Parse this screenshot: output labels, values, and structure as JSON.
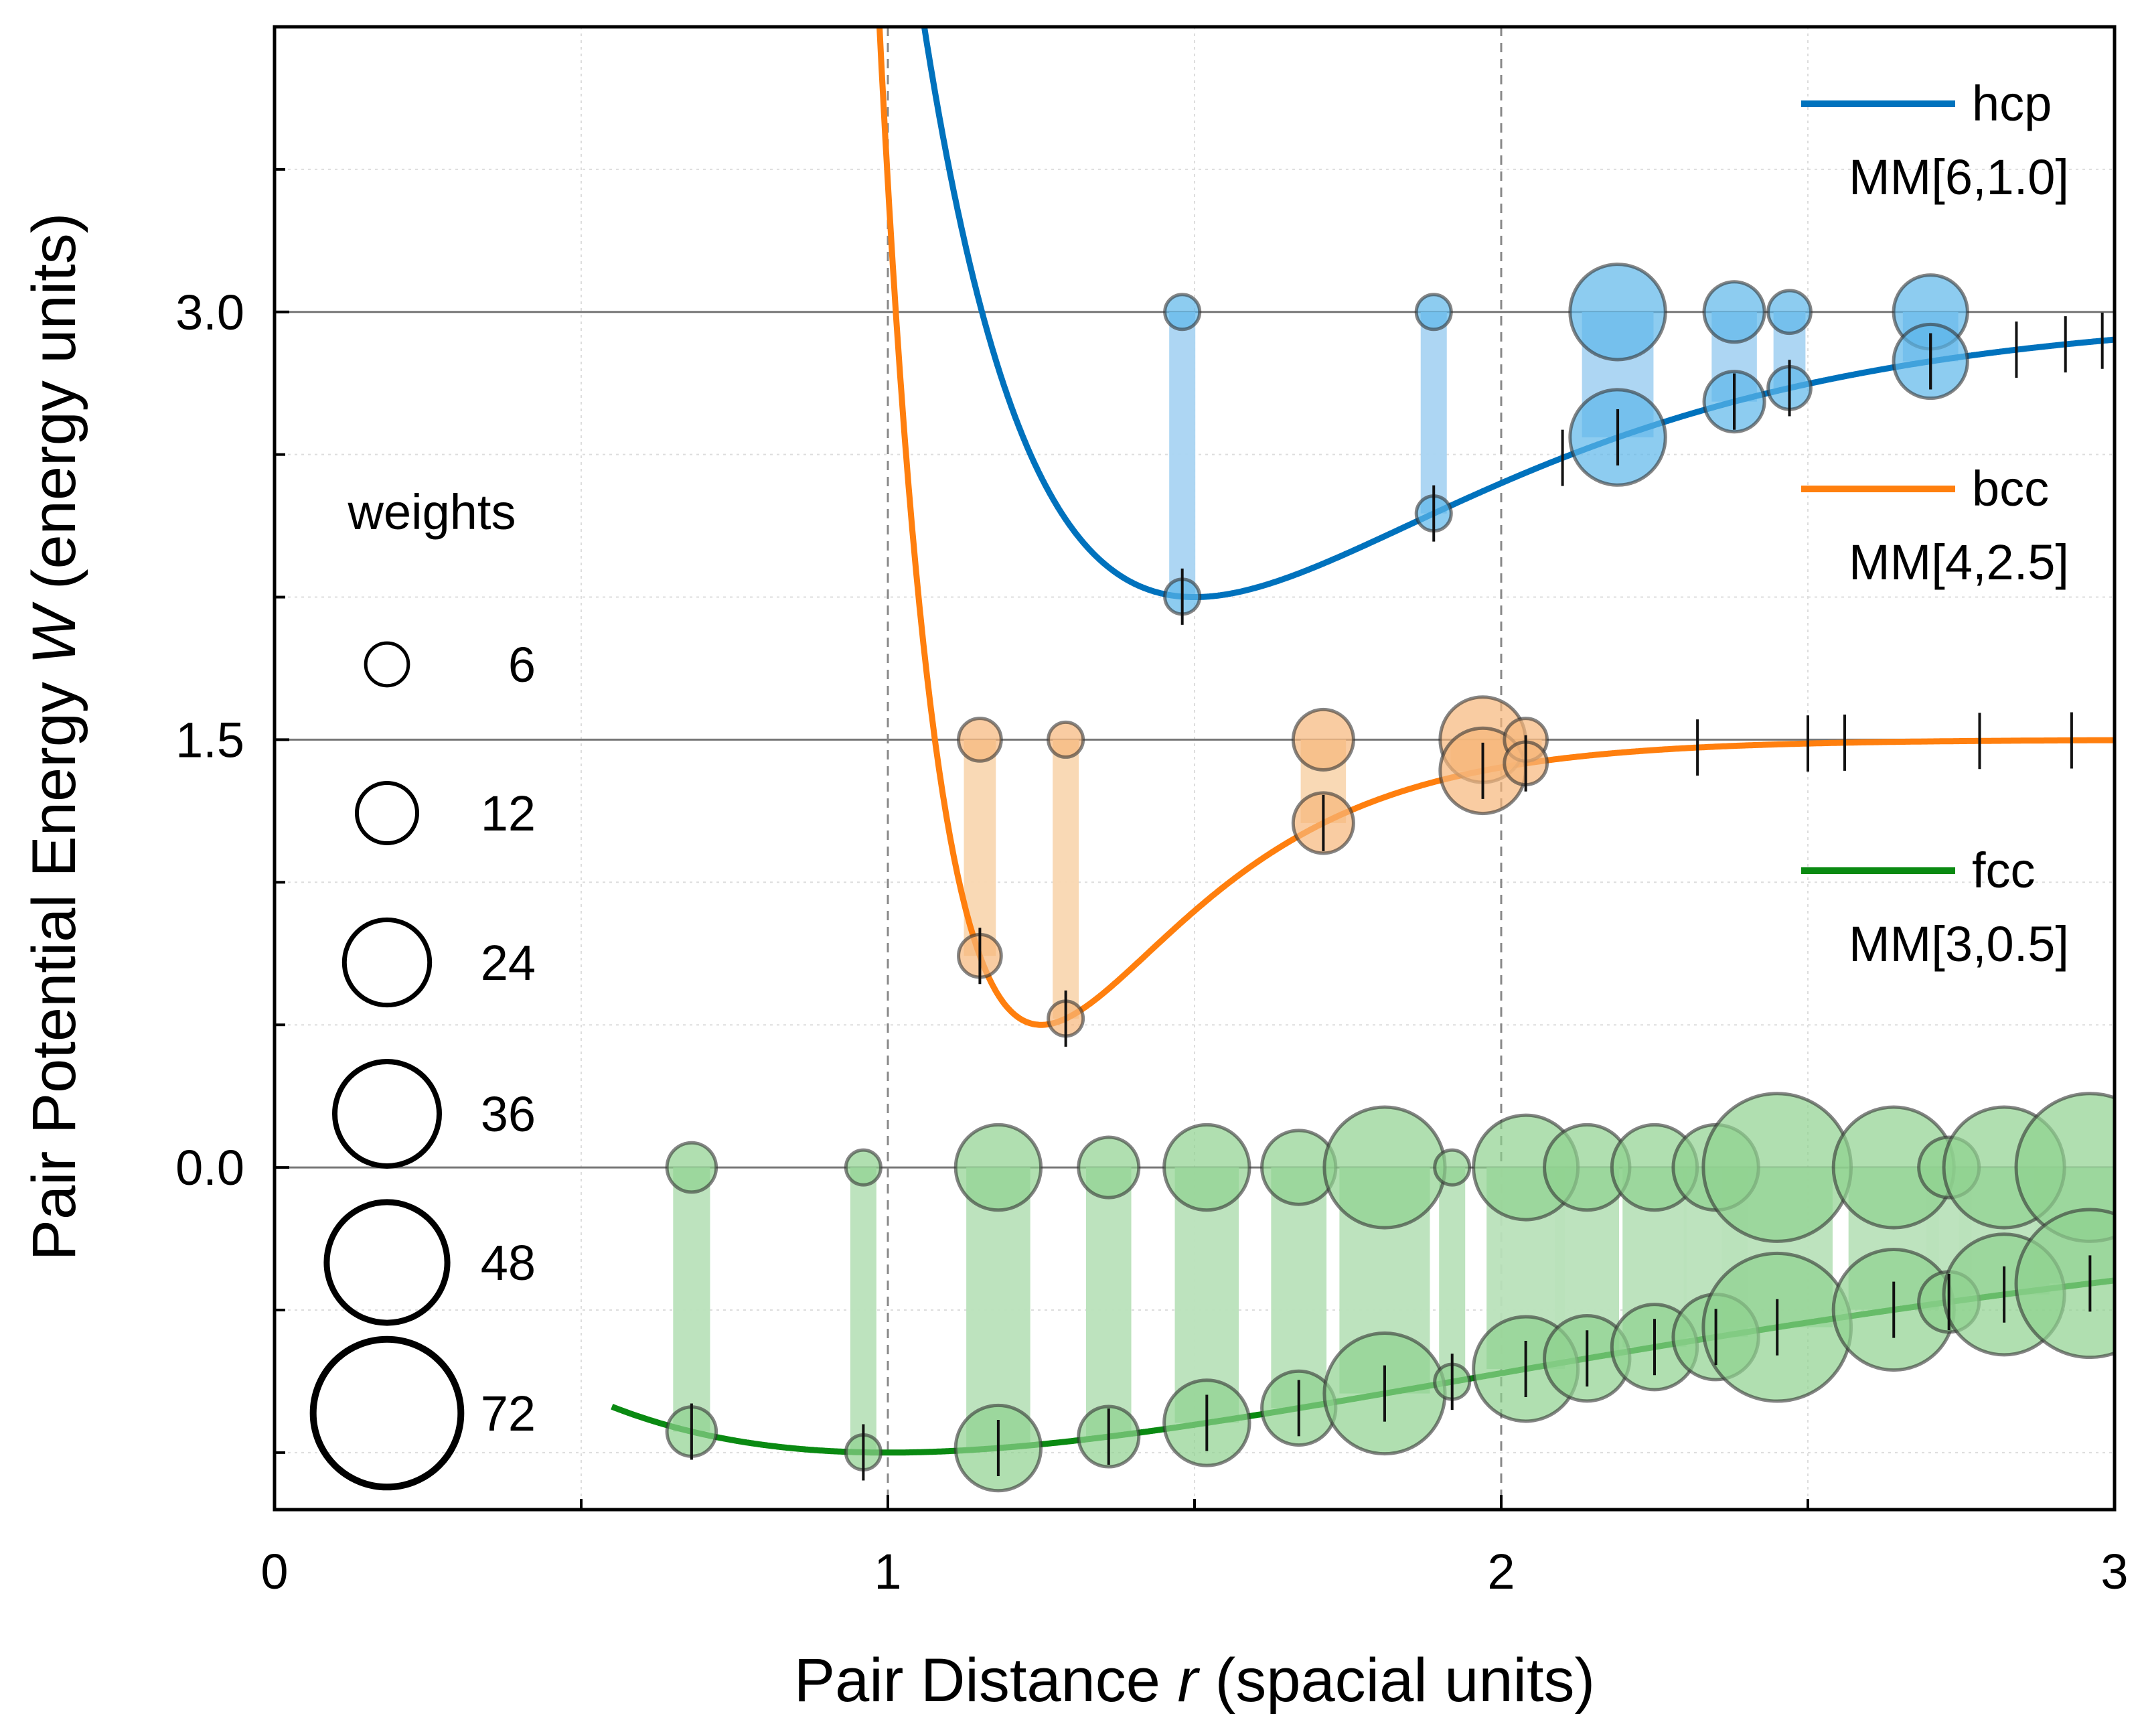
{
  "chart_data": {
    "type": "line",
    "xlabel_prefix": "Pair Distance ",
    "xlabel_var": "r",
    "xlabel_suffix": " (spacial units)",
    "ylabel_prefix": "Pair Potential Energy ",
    "ylabel_var": "W",
    "ylabel_suffix": " (energy units)",
    "xlim": [
      0,
      3
    ],
    "ylim": [
      -1.2,
      4.0
    ],
    "xticks": [
      0,
      1,
      2,
      3
    ],
    "xtick_labels": [
      "0",
      "1",
      "2",
      "3"
    ],
    "yticks": [
      0.0,
      1.5,
      3.0
    ],
    "ytick_labels": [
      "0.0",
      "1.5",
      "3.0"
    ],
    "minor_xticks": [
      0.5,
      1.5,
      2.5
    ],
    "minor_yticks": [
      -1.0,
      -0.5,
      0.5,
      1.0,
      2.0,
      2.5,
      3.5
    ],
    "dashed_vlines": [
      1,
      2
    ],
    "baselines": [
      0.0,
      1.5,
      3.0
    ],
    "series": [
      {
        "name": "hcp",
        "model": "MM[6,1.0]",
        "n": 6,
        "alpha": 1.0,
        "r0": 1.5,
        "depth": 1.0,
        "offset": 3.0,
        "color": "#0072bd",
        "light": "#5db6ea",
        "bar": "#a9d4f2",
        "points": [
          {
            "r": 1.48,
            "w": 4
          },
          {
            "r": 1.89,
            "w": 4
          },
          {
            "r": 2.19,
            "w": 30
          },
          {
            "r": 2.38,
            "w": 12
          },
          {
            "r": 2.47,
            "w": 6
          },
          {
            "r": 2.7,
            "w": 18
          }
        ],
        "shell_ticks": [
          2.1,
          2.19,
          2.38,
          2.47,
          2.7,
          2.84,
          2.92,
          2.98
        ]
      },
      {
        "name": "bcc",
        "model": "MM[4,2.5]",
        "n": 4,
        "alpha": 2.5,
        "r0": 1.25,
        "depth": 1.0,
        "offset": 1.5,
        "color": "#ff7f0e",
        "light": "#f7b77a",
        "bar": "#f9d7b1",
        "points": [
          {
            "r": 1.15,
            "w": 6
          },
          {
            "r": 1.29,
            "w": 4
          },
          {
            "r": 1.71,
            "w": 12
          },
          {
            "r": 1.97,
            "w": 24
          },
          {
            "r": 2.04,
            "w": 6
          }
        ],
        "shell_ticks": [
          2.32,
          2.5,
          2.56,
          2.78,
          2.93
        ]
      },
      {
        "name": "fcc",
        "model": "MM[3,0.5]",
        "n": 3,
        "alpha": 0.5,
        "r0": 1.0,
        "depth": 1.0,
        "offset": 0.0,
        "color": "#0a8a12",
        "light": "#8ed18e",
        "bar": "#b9e2bb",
        "points": [
          {
            "r": 0.68,
            "w": 8
          },
          {
            "r": 0.96,
            "w": 4
          },
          {
            "r": 1.18,
            "w": 24
          },
          {
            "r": 1.36,
            "w": 12
          },
          {
            "r": 1.52,
            "w": 24
          },
          {
            "r": 1.67,
            "w": 18
          },
          {
            "r": 1.81,
            "w": 48
          },
          {
            "r": 1.92,
            "w": 4
          },
          {
            "r": 2.04,
            "w": 36
          },
          {
            "r": 2.14,
            "w": 24
          },
          {
            "r": 2.25,
            "w": 24
          },
          {
            "r": 2.35,
            "w": 24
          },
          {
            "r": 2.45,
            "w": 72
          },
          {
            "r": 2.64,
            "w": 48
          },
          {
            "r": 2.73,
            "w": 12
          },
          {
            "r": 2.82,
            "w": 48
          },
          {
            "r": 2.96,
            "w": 72
          }
        ],
        "shell_ticks": []
      }
    ],
    "weights_legend": {
      "title": "weights",
      "entries": [
        {
          "label": "6",
          "w": 6
        },
        {
          "label": "12",
          "w": 12
        },
        {
          "label": "24",
          "w": 24
        },
        {
          "label": "36",
          "w": 36
        },
        {
          "label": "48",
          "w": 48
        },
        {
          "label": "72",
          "w": 72
        }
      ]
    }
  }
}
